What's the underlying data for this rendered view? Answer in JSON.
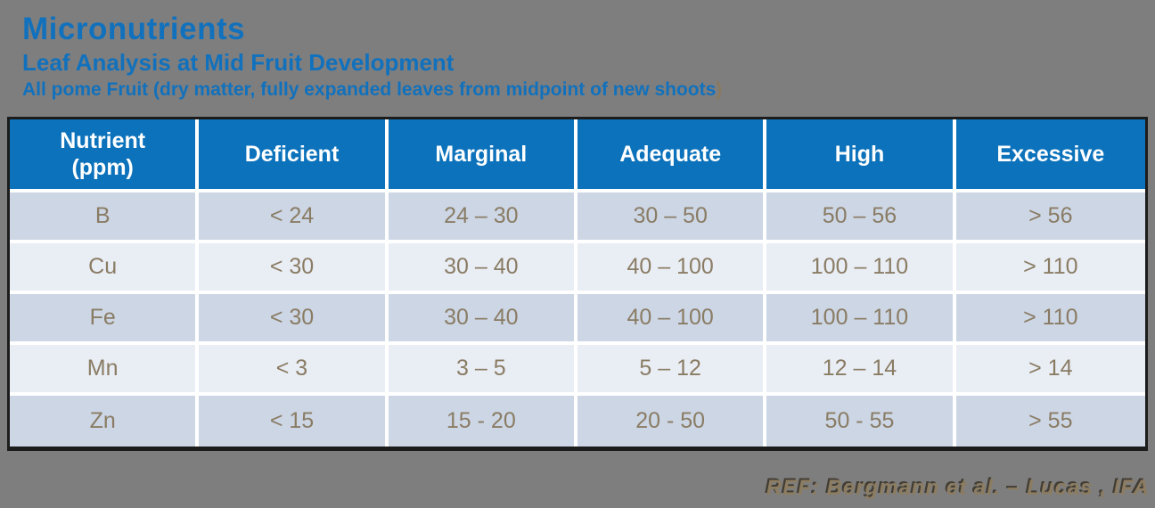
{
  "slide": {
    "title": "Micronutrients",
    "subtitle": "Leaf Analysis at Mid Fruit Development",
    "subtitle2_main": "All pome Fruit (dry matter, fully expanded leaves from midpoint of new shoots",
    "subtitle2_paren": ")",
    "footer_reference": "REF: Bergmann et al. – Lucas , IFA"
  },
  "table": {
    "headers": [
      "Nutrient\n(ppm)",
      "Deficient",
      "Marginal",
      "Adequate",
      "High",
      "Excessive"
    ],
    "rows": [
      {
        "nutrient": "B",
        "deficient": "< 24",
        "marginal": "24 – 30",
        "adequate": "30 – 50",
        "high": "50 – 56",
        "excessive": "> 56"
      },
      {
        "nutrient": "Cu",
        "deficient": "< 30",
        "marginal": "30 – 40",
        "adequate": "40 – 100",
        "high": "100 – 110",
        "excessive": "> 110"
      },
      {
        "nutrient": "Fe",
        "deficient": "< 30",
        "marginal": "30 – 40",
        "adequate": "40 – 100",
        "high": "100 – 110",
        "excessive": "> 110"
      },
      {
        "nutrient": "Mn",
        "deficient": "< 3",
        "marginal": "3 – 5",
        "adequate": "5 – 12",
        "high": "12 – 14",
        "excessive": "> 14"
      },
      {
        "nutrient": "Zn",
        "deficient": "< 15",
        "marginal": "15 - 20",
        "adequate": "20 - 50",
        "high": "50 - 55",
        "excessive": "> 55"
      }
    ]
  },
  "colors": {
    "background_gray": "#7e7e7e",
    "title_blue": "#1171bd",
    "header_blue": "#0c72bb",
    "row_dark": "#ccd6e5",
    "row_light": "#e9edf4",
    "cell_text": "#8a7c64",
    "footer_text": "#8c7c61",
    "table_border": "#1c1c1c"
  }
}
